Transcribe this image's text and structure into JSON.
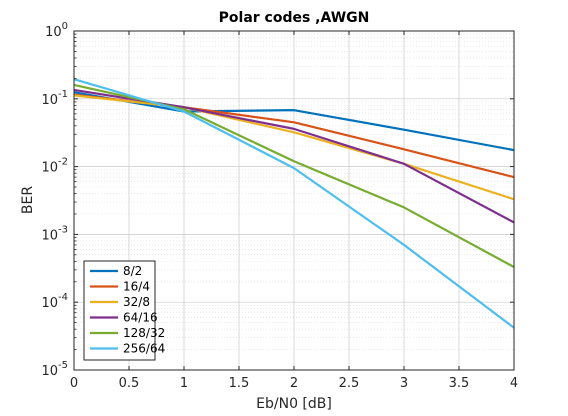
{
  "chart_data": {
    "type": "line",
    "title": "Polar codes ,AWGN",
    "xlabel": "Eb/N0 [dB]",
    "ylabel": "BER",
    "xlim": [
      0,
      4
    ],
    "ylim": [
      1e-05,
      1
    ],
    "yscale": "log",
    "grid": true,
    "minor_grid": true,
    "legend_position": "bottom-left",
    "x_ticks": [
      "0",
      "0.5",
      "1",
      "1.5",
      "2",
      "2.5",
      "3",
      "3.5",
      "4"
    ],
    "y_ticks": [
      {
        "base": "10",
        "exp": "0"
      },
      {
        "base": "10",
        "exp": "-1"
      },
      {
        "base": "10",
        "exp": "-2"
      },
      {
        "base": "10",
        "exp": "-3"
      },
      {
        "base": "10",
        "exp": "-4"
      },
      {
        "base": "10",
        "exp": "-5"
      }
    ],
    "x": [
      0,
      1,
      2,
      3,
      4
    ],
    "series": [
      {
        "name": "8/2",
        "color": "#0072BD",
        "values": [
          0.125,
          0.065,
          0.068,
          0.035,
          0.0175
        ]
      },
      {
        "name": "16/4",
        "color": "#D95319",
        "values": [
          0.115,
          0.075,
          0.045,
          0.018,
          0.007
        ]
      },
      {
        "name": "32/8",
        "color": "#EDB120",
        "values": [
          0.112,
          0.075,
          0.032,
          0.011,
          0.0033
        ]
      },
      {
        "name": "64/16",
        "color": "#7E2F8E",
        "values": [
          0.135,
          0.075,
          0.036,
          0.011,
          0.0015
        ]
      },
      {
        "name": "128/32",
        "color": "#77AC30",
        "values": [
          0.16,
          0.07,
          0.012,
          0.0025,
          0.00033
        ]
      },
      {
        "name": "256/64",
        "color": "#4DBEEE",
        "values": [
          0.195,
          0.065,
          0.0095,
          0.0007,
          4.2e-05
        ]
      }
    ]
  }
}
